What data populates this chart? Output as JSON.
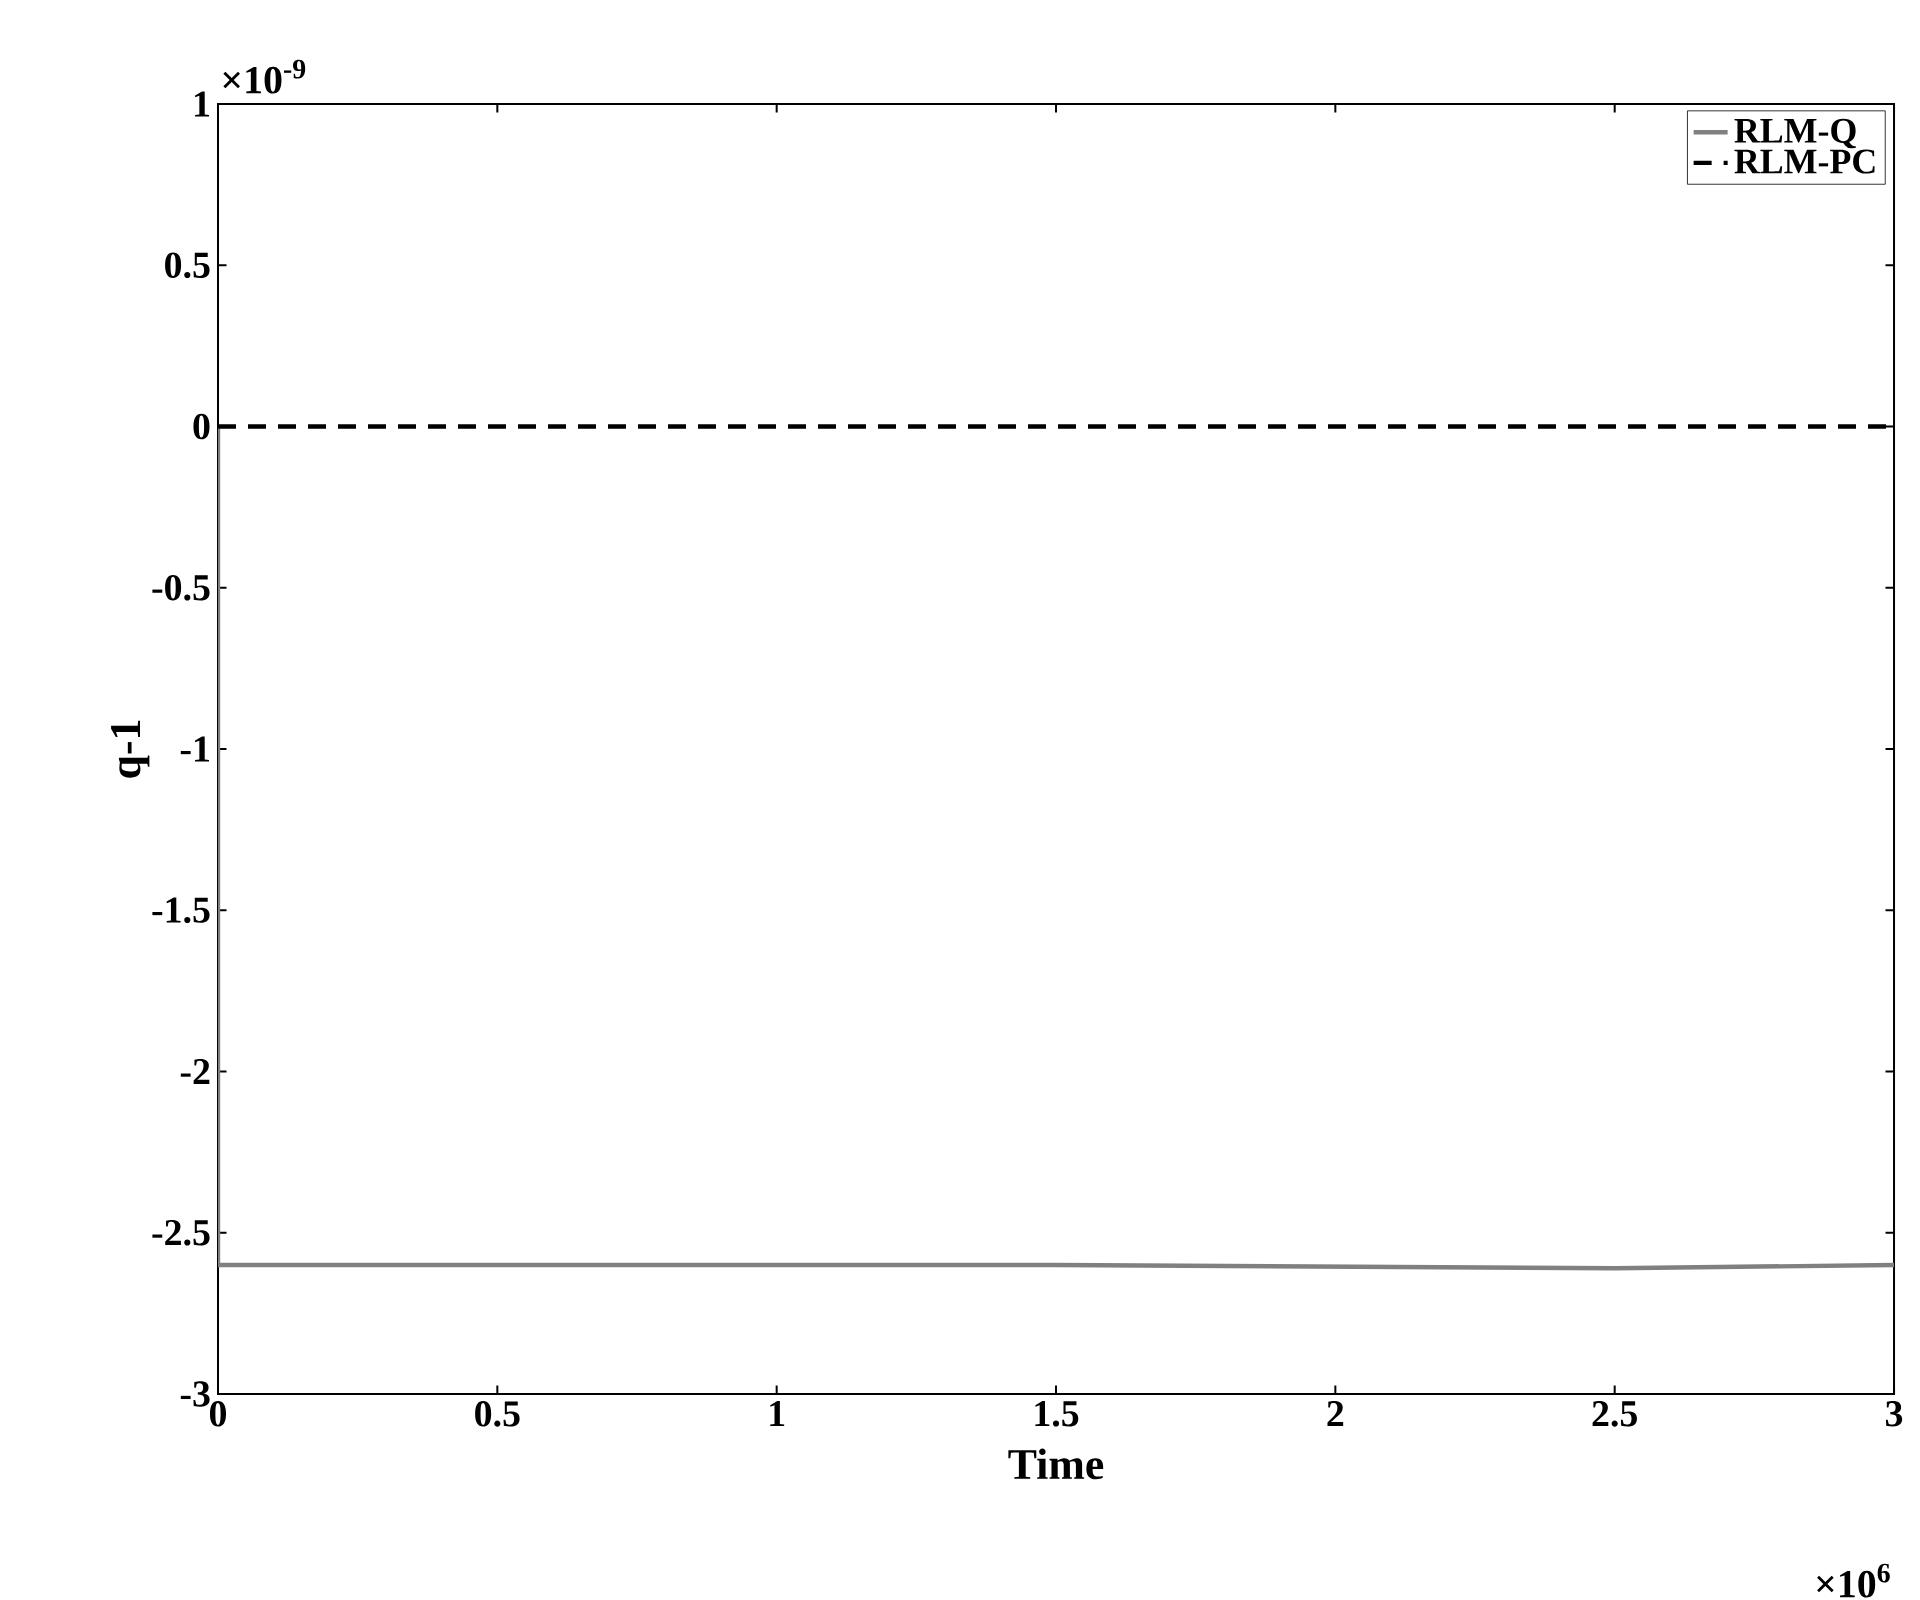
{
  "chart_data": {
    "type": "line",
    "xlabel": "Time",
    "ylabel": "q-1",
    "series": [
      {
        "name": "RLM-Q",
        "color": "#808080",
        "line_style": "solid",
        "x": [
          0,
          0,
          1.5,
          2.5,
          3
        ],
        "values": [
          0,
          -2.6,
          -2.6,
          -2.61,
          -2.6
        ]
      },
      {
        "name": "RLM-PC",
        "color": "#000000",
        "line_style": "dashed",
        "x": [
          0,
          3
        ],
        "values": [
          0,
          0
        ]
      }
    ],
    "xlim": [
      0,
      3
    ],
    "ylim": [
      -3,
      1
    ],
    "xticks": [
      0,
      0.5,
      1,
      1.5,
      2,
      2.5,
      3
    ],
    "yticks": [
      -3,
      -2.5,
      -2,
      -1.5,
      -1,
      -0.5,
      0,
      0.5,
      1
    ],
    "annotations": [
      "×10$^{-9}$",
      "×10$^{6}$"
    ],
    "grid": false,
    "legend": "top right",
    "marker": "none"
  }
}
